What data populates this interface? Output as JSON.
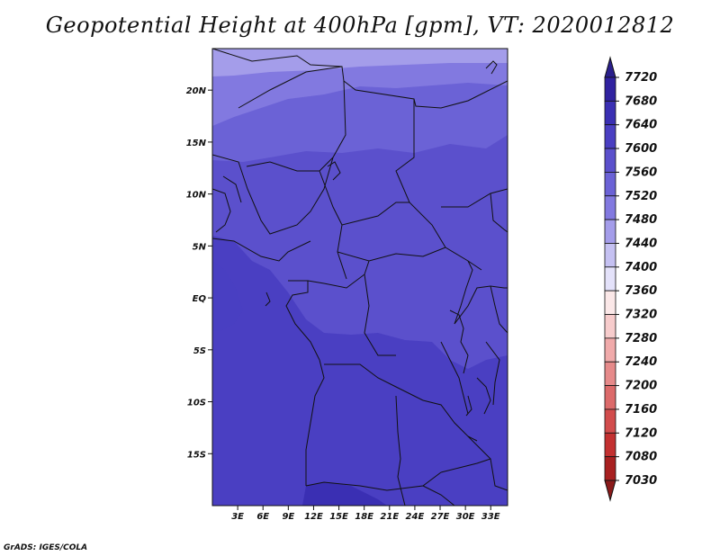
{
  "title": "Geopotential Height at 400hPa [gpm], VT: 2020012812",
  "footer": "GrADS: IGES/COLA",
  "map": {
    "projection": "latlon",
    "lon_range": [
      0,
      35
    ],
    "lat_range": [
      -20,
      24
    ],
    "x_ticks": [
      "3E",
      "6E",
      "9E",
      "12E",
      "15E",
      "18E",
      "21E",
      "24E",
      "27E",
      "30E",
      "33E"
    ],
    "x_tick_values": [
      3,
      6,
      9,
      12,
      15,
      18,
      21,
      24,
      27,
      30,
      33
    ],
    "y_ticks": [
      "20N",
      "15N",
      "10N",
      "5N",
      "EQ",
      "5S",
      "10S",
      "15S"
    ],
    "y_tick_values": [
      20,
      15,
      10,
      5,
      0,
      -5,
      -10,
      -15
    ]
  },
  "colorbar": {
    "labels": [
      "7720",
      "7680",
      "7640",
      "7600",
      "7560",
      "7520",
      "7480",
      "7440",
      "7400",
      "7360",
      "7320",
      "7280",
      "7240",
      "7200",
      "7160",
      "7120",
      "7080",
      "7030"
    ],
    "colors": [
      "#2a1f8c",
      "#3022a0",
      "#3a2fb3",
      "#4a3fc2",
      "#5b50cc",
      "#6b62d6",
      "#8279e0",
      "#a49dea",
      "#c5c1f2",
      "#e4e2fa",
      "#fbe8e8",
      "#f7cccc",
      "#f0aaaa",
      "#e68a8a",
      "#dc6a6a",
      "#d24c4c",
      "#c33030",
      "#a82020",
      "#8a1a1a"
    ]
  },
  "chart_data": {
    "type": "heatmap",
    "title": "Geopotential Height at 400hPa [gpm], VT: 2020012812",
    "xlabel": "",
    "ylabel": "",
    "x_range": [
      0,
      35
    ],
    "y_range": [
      -20,
      24
    ],
    "colorbar_levels": [
      7030,
      7080,
      7120,
      7160,
      7200,
      7240,
      7280,
      7320,
      7360,
      7400,
      7440,
      7480,
      7520,
      7560,
      7600,
      7640,
      7680,
      7720
    ],
    "approx_field": [
      {
        "lat_band": "22N-24N",
        "value_range": [
          7480,
          7520
        ]
      },
      {
        "lat_band": "17N-22N",
        "value_range": [
          7520,
          7560
        ]
      },
      {
        "lat_band": "0-17N",
        "value_range": [
          7560,
          7600
        ]
      },
      {
        "lat_band": "20S-3S",
        "value_range": [
          7600,
          7640
        ]
      },
      {
        "lat_band": "near 18S-20S, 12E-18E",
        "value_range": [
          7640,
          7680
        ]
      }
    ]
  }
}
